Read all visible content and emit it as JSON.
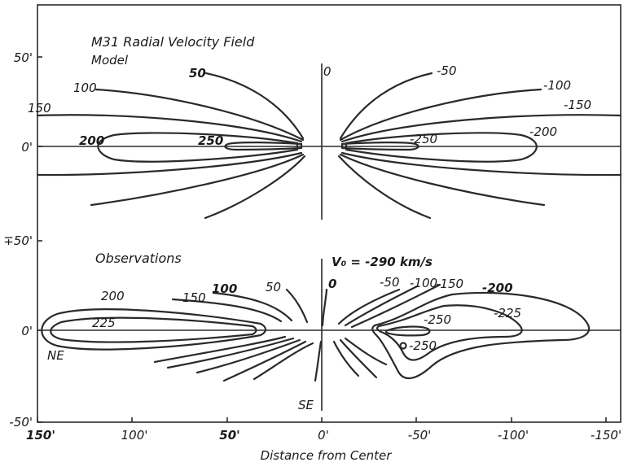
{
  "figure": {
    "title": "M31  Radial Velocity Field",
    "model_label": "Model",
    "observations_label": "Observations",
    "v0_label": "V₀ = -290 km/s",
    "xlabel": "Distance from Center",
    "ne_label": "NE",
    "se_label": "SE"
  },
  "y_ticks": {
    "top_50": "50'",
    "top_0": "0'",
    "mid": "∓50'",
    "bottom_0": "0'",
    "bottom_m50": "-50'"
  },
  "x_ticks": [
    "150'",
    "100'",
    "50'",
    "0'",
    "-50'",
    "-100'",
    "-150'"
  ],
  "model_labels": {
    "l50": "50",
    "l100": "100",
    "l150": "150",
    "l200": "200",
    "l250": "250",
    "l0": "0",
    "lm50": "-50",
    "lm100": "-100",
    "lm150": "-150",
    "lm200": "-200",
    "lm250": "-250"
  },
  "obs_labels": {
    "l200": "200",
    "l225": "225",
    "l150": "150",
    "l100": "100",
    "l50": "50",
    "l0": "0",
    "lm50": "-50",
    "lm100": "-100",
    "lm150": "-150",
    "lm200": "-200",
    "lm225": "-225",
    "lm250a": "-250",
    "lm250b": "-250"
  }
}
